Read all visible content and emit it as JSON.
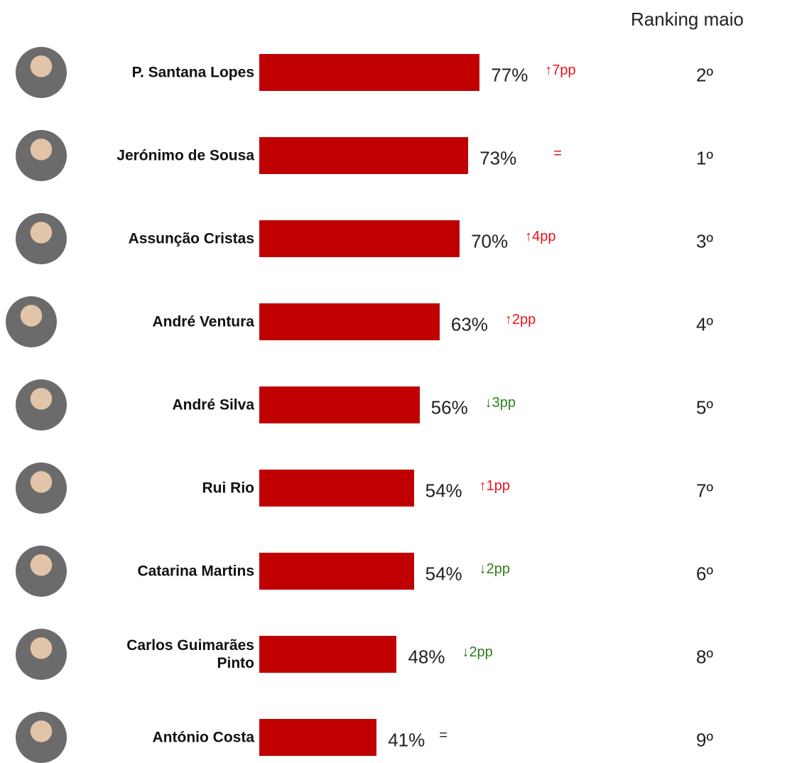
{
  "chart_data": {
    "type": "bar",
    "orientation": "horizontal",
    "column_header": "Ranking maio",
    "categories": [
      "P. Santana Lopes",
      "Jerónimo de Sousa",
      "Assunção Cristas",
      "André Ventura",
      "André Silva",
      "Rui Rio",
      "Catarina Martins",
      "Carlos Guimarães\nPinto",
      "António Costa"
    ],
    "values": [
      77,
      73,
      70,
      63,
      56,
      54,
      54,
      48,
      41
    ],
    "value_labels": [
      "77%",
      "73%",
      "70%",
      "63%",
      "56%",
      "54%",
      "54%",
      "48%",
      "41%"
    ],
    "color": "#c00000",
    "changes": [
      {
        "label": "↑7pp",
        "color": "#e8141b"
      },
      {
        "label": "=",
        "color": "#e8141b"
      },
      {
        "label": "↑4pp",
        "color": "#e8141b"
      },
      {
        "label": "↑2pp",
        "color": "#e8141b"
      },
      {
        "label": "↓3pp",
        "color": "#2e7d1e"
      },
      {
        "label": "↑1pp",
        "color": "#e8141b"
      },
      {
        "label": "↓2pp",
        "color": "#2e7d1e"
      },
      {
        "label": "↓2pp",
        "color": "#2e7d1e"
      },
      {
        "label": "=",
        "color": "#333333"
      }
    ],
    "ranking": [
      "2º",
      "1º",
      "3º",
      "4º",
      "5º",
      "7º",
      "6º",
      "8º",
      "9º"
    ]
  }
}
